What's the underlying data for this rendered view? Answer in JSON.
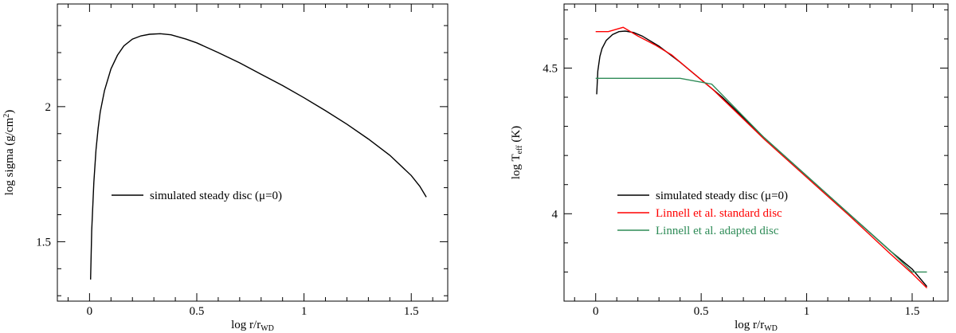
{
  "chart_data": [
    {
      "type": "line",
      "xlabel": "log r/r",
      "xlabel_sub": "WD",
      "ylabel": "log sigma (g/cm",
      "ylabel_sup": "2",
      "ylabel_end": ")",
      "xlim": [
        -0.15,
        1.67
      ],
      "ylim": [
        1.28,
        2.38
      ],
      "xticks": [
        0,
        0.5,
        1,
        1.5
      ],
      "xtick_labels": [
        "0",
        "0.5",
        "1",
        "1.5"
      ],
      "yticks": [
        1.5,
        2
      ],
      "ytick_labels": [
        "1.5",
        "2"
      ],
      "x_minor": 0.1,
      "y_minor": 0.1,
      "grid": false,
      "legend_position": "center",
      "series": [
        {
          "name": "simulated steady disc (μ=0)",
          "color": "#000000",
          "x": [
            0.005,
            0.01,
            0.02,
            0.03,
            0.04,
            0.05,
            0.07,
            0.1,
            0.13,
            0.16,
            0.2,
            0.24,
            0.28,
            0.33,
            0.38,
            0.45,
            0.5,
            0.6,
            0.7,
            0.8,
            0.9,
            1.0,
            1.1,
            1.2,
            1.3,
            1.4,
            1.5,
            1.54,
            1.57
          ],
          "y": [
            1.36,
            1.54,
            1.72,
            1.84,
            1.92,
            1.98,
            2.06,
            2.14,
            2.19,
            2.225,
            2.25,
            2.262,
            2.268,
            2.27,
            2.266,
            2.25,
            2.236,
            2.2,
            2.162,
            2.12,
            2.078,
            2.033,
            1.985,
            1.935,
            1.88,
            1.82,
            1.745,
            1.705,
            1.665
          ]
        }
      ]
    },
    {
      "type": "line",
      "xlabel": "log r/r",
      "xlabel_sub": "WD",
      "ylabel": "log T",
      "ylabel_sub": "eff",
      "ylabel_end": " (K)",
      "xlim": [
        -0.15,
        1.67
      ],
      "ylim": [
        3.7,
        4.72
      ],
      "xticks": [
        0,
        0.5,
        1,
        1.5
      ],
      "xtick_labels": [
        "0",
        "0.5",
        "1",
        "1.5"
      ],
      "yticks": [
        4,
        4.5
      ],
      "ytick_labels": [
        "4",
        "4.5"
      ],
      "x_minor": 0.1,
      "y_minor": 0.1,
      "grid": false,
      "legend_position": "bottom-center",
      "series": [
        {
          "name": "simulated steady disc (μ=0)",
          "color": "#000000",
          "x": [
            0.005,
            0.01,
            0.02,
            0.03,
            0.05,
            0.08,
            0.11,
            0.14,
            0.18,
            0.22,
            0.3,
            0.4,
            0.5,
            0.6,
            0.8,
            1.0,
            1.2,
            1.4,
            1.5,
            1.57
          ],
          "y": [
            4.41,
            4.49,
            4.54,
            4.567,
            4.595,
            4.615,
            4.625,
            4.627,
            4.622,
            4.61,
            4.575,
            4.52,
            4.46,
            4.4,
            4.26,
            4.13,
            4.0,
            3.87,
            3.81,
            3.75
          ]
        },
        {
          "name": "Linnell et al. standard disc",
          "color": "#ff0000",
          "x": [
            0.0,
            0.06,
            0.13,
            0.2,
            0.28,
            0.36,
            0.45,
            0.55,
            0.65,
            0.8,
            1.0,
            1.2,
            1.4,
            1.5,
            1.57
          ],
          "y": [
            4.625,
            4.625,
            4.64,
            4.61,
            4.58,
            4.545,
            4.49,
            4.43,
            4.36,
            4.255,
            4.125,
            3.995,
            3.86,
            3.795,
            3.745
          ]
        },
        {
          "name": "Linnell et al. adapted disc",
          "color": "#2e8b57",
          "x": [
            0.0,
            0.2,
            0.4,
            0.55,
            0.8,
            1.0,
            1.2,
            1.4,
            1.5,
            1.57
          ],
          "y": [
            4.465,
            4.465,
            4.465,
            4.445,
            4.26,
            4.13,
            4.0,
            3.87,
            3.8,
            3.8
          ]
        }
      ]
    }
  ]
}
